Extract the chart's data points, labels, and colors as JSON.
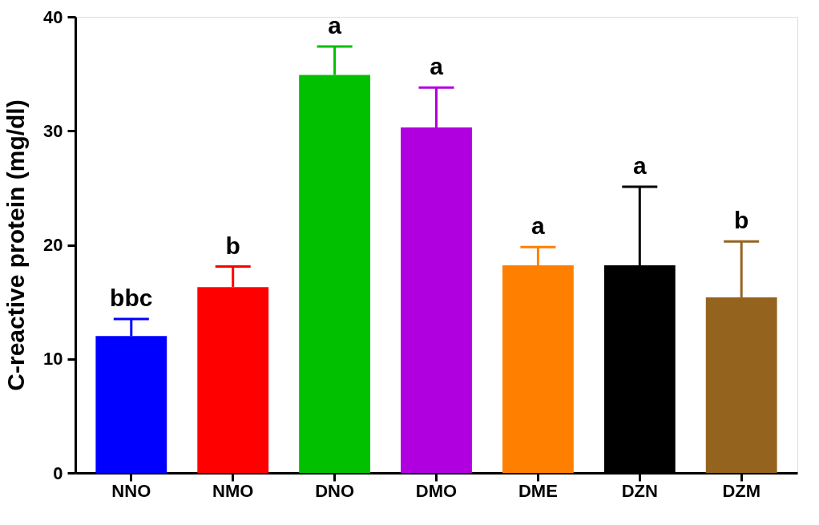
{
  "chart_data": {
    "type": "bar",
    "ylabel": "C-reactive protein (mg/dl)",
    "categories": [
      "NNO",
      "NMO",
      "DNO",
      "DMO",
      "DME",
      "DZN",
      "DZM"
    ],
    "values": [
      12.0,
      16.3,
      34.9,
      30.3,
      18.2,
      18.2,
      15.4
    ],
    "colors": [
      "#0000ff",
      "#ff0000",
      "#00c000",
      "#b000e0",
      "#ff8000",
      "#000000",
      "#94641f"
    ],
    "errors": [
      [
        12.0,
        13.5
      ],
      [
        16.3,
        18.1
      ],
      [
        34.9,
        37.4
      ],
      [
        30.3,
        33.8
      ],
      [
        18.2,
        19.8
      ],
      [
        18.2,
        25.1
      ],
      [
        15.4,
        20.3
      ]
    ],
    "annotations": [
      {
        "text": "bbc",
        "x": "NNO",
        "y": 13.5
      },
      {
        "text": "b",
        "x": "NMO",
        "y": 18.1
      },
      {
        "text": "a",
        "x": "DNO",
        "y": 37.4
      },
      {
        "text": "a",
        "x": "DMO",
        "y": 33.8
      },
      {
        "text": "a",
        "x": "DME",
        "y": 19.8
      },
      {
        "text": "a",
        "x": "DZN",
        "y": 25.1
      },
      {
        "text": "b",
        "x": "DZM",
        "y": 20.3
      }
    ],
    "ylim": [
      0,
      40
    ],
    "yticks": [
      0,
      10,
      20,
      30,
      40
    ],
    "grid": false
  }
}
